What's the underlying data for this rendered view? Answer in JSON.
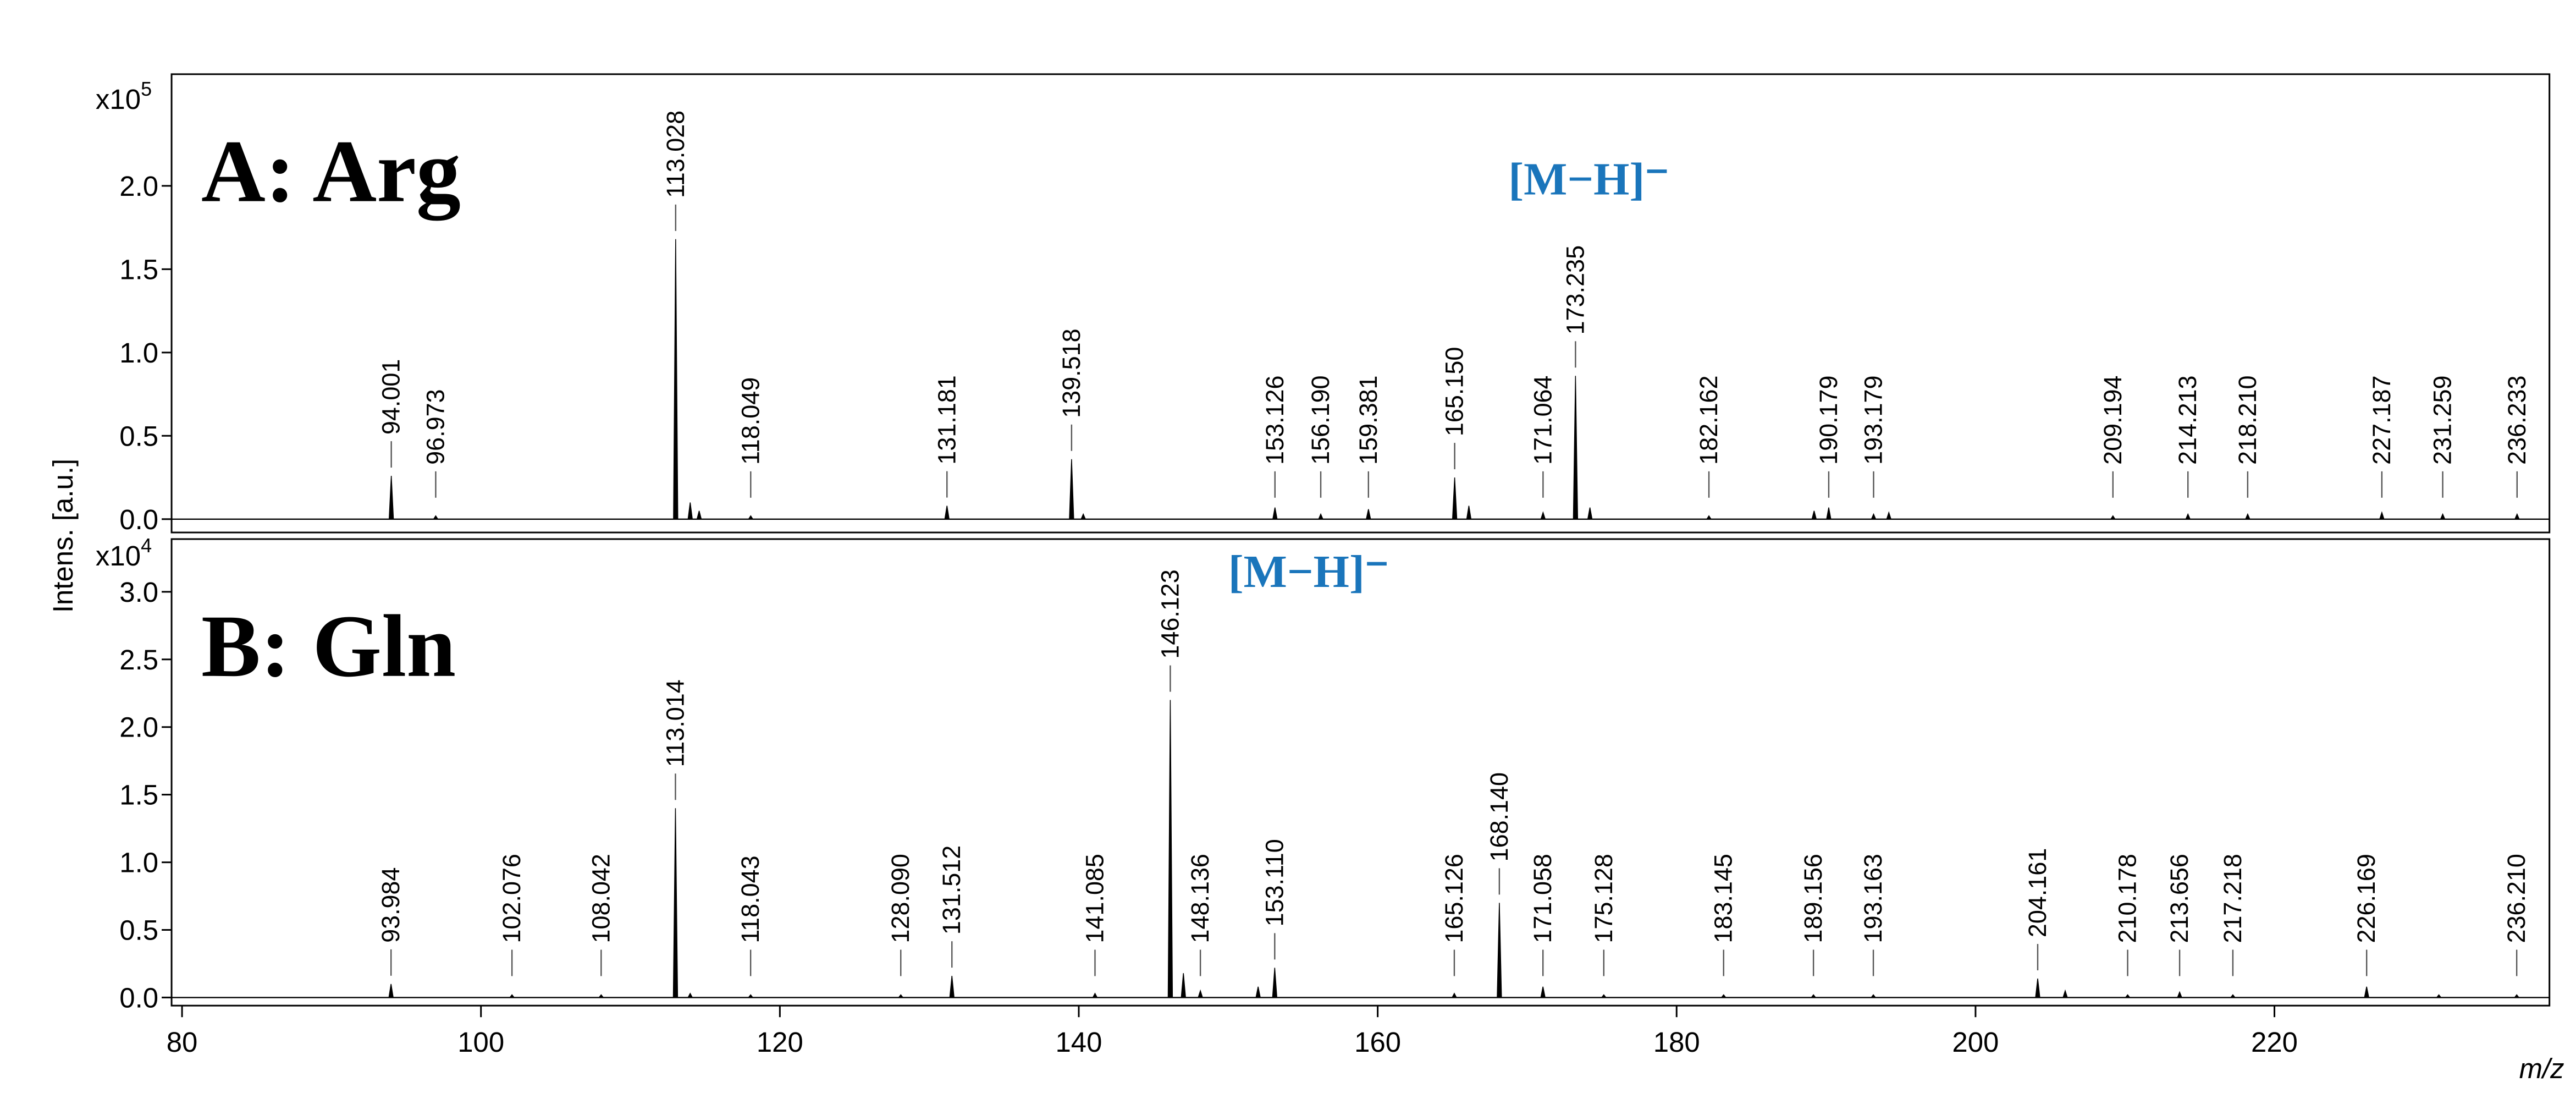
{
  "y_label": "Intens. [a.u.]",
  "x_label": "m/z",
  "chart_data": [
    {
      "type": "spectrum",
      "title": "A: Arg",
      "annotation": "[M−H]⁻",
      "color": "#000000",
      "annotation_color": "#1a75bb",
      "y_scale_label": "x10",
      "y_scale_exponent": "5",
      "xlim": [
        79.3,
        238.4
      ],
      "ylim": [
        -0.08,
        2.67
      ],
      "yticks": [
        {
          "value": 0,
          "label": "0.0"
        },
        0.5,
        {
          "value": 1,
          "label": "1.0"
        },
        1.5,
        {
          "value": 2,
          "label": "2.0"
        }
      ],
      "x": [
        94.001,
        96.973,
        113.028,
        114.0,
        114.6,
        118.049,
        131.181,
        139.518,
        140.3,
        153.126,
        156.19,
        159.381,
        165.15,
        166.1,
        171.064,
        173.235,
        174.2,
        182.162,
        189.2,
        190.179,
        193.179,
        194.2,
        209.194,
        214.213,
        218.21,
        227.187,
        231.259,
        236.233
      ],
      "values": [
        0.26,
        0.02,
        1.68,
        0.1,
        0.05,
        0.02,
        0.08,
        0.36,
        0.03,
        0.07,
        0.03,
        0.06,
        0.25,
        0.08,
        0.04,
        0.86,
        0.07,
        0.02,
        0.05,
        0.07,
        0.03,
        0.04,
        0.02,
        0.03,
        0.03,
        0.04,
        0.03,
        0.03
      ],
      "peak_labels": [
        "94.001",
        "96.973",
        "113.028",
        null,
        null,
        "118.049",
        "131.181",
        "139.518",
        null,
        "153.126",
        "156.190",
        "159.381",
        "165.150",
        null,
        "171.064",
        "173.235",
        null,
        "182.162",
        null,
        "190.179",
        "193.179",
        null,
        "209.194",
        "214.213",
        "218.210",
        "227.187",
        "231.259",
        "236.233"
      ]
    },
    {
      "type": "spectrum",
      "title": "B: Gln",
      "annotation": "[M−H]⁻",
      "color": "#000000",
      "annotation_color": "#1a75bb",
      "y_scale_label": "x10",
      "y_scale_exponent": "4",
      "xlim": [
        79.3,
        238.4
      ],
      "ylim": [
        -0.06,
        3.39
      ],
      "yticks": [
        {
          "value": 0,
          "label": "0.0"
        },
        0.5,
        {
          "value": 1,
          "label": "1.0"
        },
        1.5,
        {
          "value": 2,
          "label": "2.0"
        },
        2.5,
        {
          "value": 3,
          "label": "3.0"
        }
      ],
      "xticks": [
        80,
        100,
        120,
        140,
        160,
        180,
        200,
        220
      ],
      "x": [
        93.984,
        102.076,
        108.042,
        113.014,
        114.0,
        118.043,
        128.09,
        131.512,
        141.085,
        146.123,
        147.0,
        148.136,
        152.0,
        153.11,
        165.126,
        168.14,
        171.058,
        175.128,
        183.145,
        189.156,
        193.163,
        204.161,
        206.0,
        210.178,
        213.656,
        217.218,
        226.169,
        231.0,
        236.21
      ],
      "values": [
        0.1,
        0.02,
        0.02,
        1.4,
        0.03,
        0.02,
        0.02,
        0.16,
        0.03,
        2.2,
        0.18,
        0.05,
        0.08,
        0.22,
        0.03,
        0.7,
        0.08,
        0.02,
        0.02,
        0.02,
        0.02,
        0.14,
        0.05,
        0.02,
        0.04,
        0.02,
        0.08,
        0.02,
        0.02
      ],
      "peak_labels": [
        "93.984",
        "102.076",
        "108.042",
        "113.014",
        null,
        "118.043",
        "128.090",
        "131.512",
        "141.085",
        "146.123",
        null,
        "148.136",
        null,
        "153.110",
        "165.126",
        "168.140",
        "171.058",
        "175.128",
        "183.145",
        "189.156",
        "193.163",
        "204.161",
        null,
        "210.178",
        "213.656",
        "217.218",
        "226.169",
        null,
        "236.210"
      ]
    }
  ]
}
